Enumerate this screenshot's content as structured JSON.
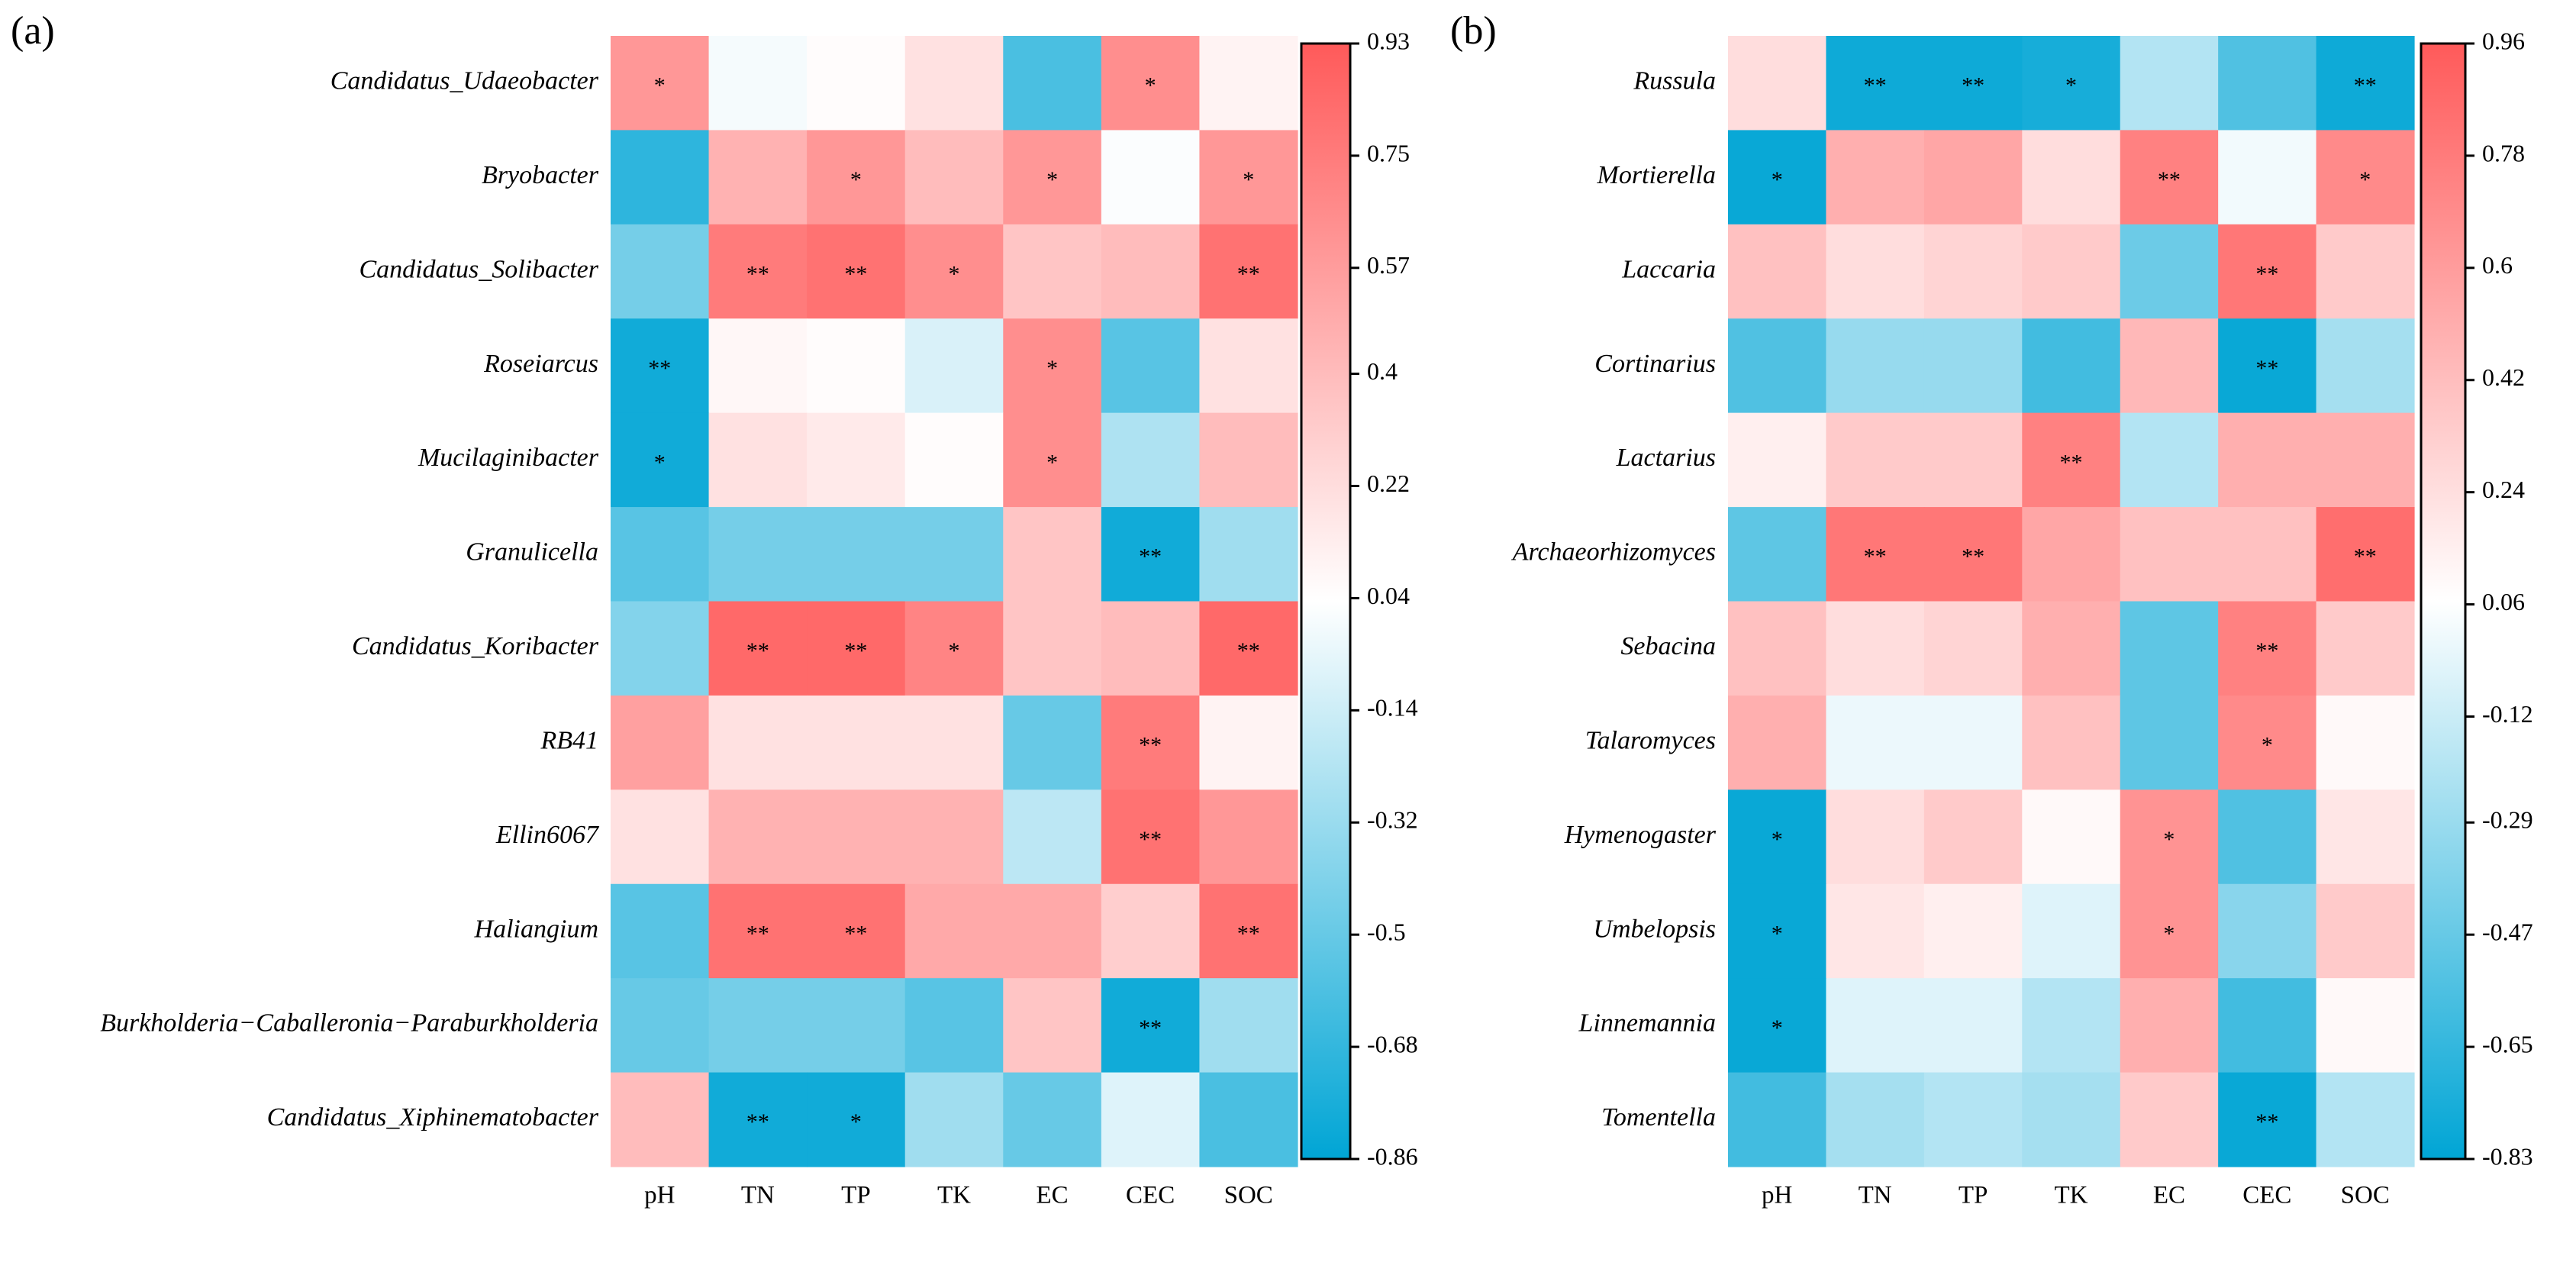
{
  "chart_data": [
    {
      "type": "heatmap",
      "panel_label": "(a)",
      "columns": [
        "pH",
        "TN",
        "TP",
        "TK",
        "EC",
        "CEC",
        "SOC"
      ],
      "rows": [
        "Candidatus_Udaeobacter",
        "Bryobacter",
        "Candidatus_Solibacter",
        "Roseiarcus",
        "Mucilaginibacter",
        "Granulicella",
        "Candidatus_Koribacter",
        "RB41",
        "Ellin6067",
        "Haliangium",
        "Burkholderia−Caballeronia−Paraburkholderia",
        "Candidatus_Xiphinematobacter"
      ],
      "values": [
        [
          0.6,
          0.0,
          0.05,
          0.2,
          -0.6,
          0.65,
          0.1
        ],
        [
          -0.7,
          0.45,
          0.6,
          0.4,
          0.6,
          0.02,
          0.6
        ],
        [
          -0.45,
          0.75,
          0.8,
          0.65,
          0.35,
          0.4,
          0.8
        ],
        [
          -0.8,
          0.08,
          0.05,
          -0.1,
          0.65,
          -0.55,
          0.2
        ],
        [
          -0.8,
          0.2,
          0.15,
          0.05,
          0.65,
          -0.25,
          0.4
        ],
        [
          -0.55,
          -0.45,
          -0.45,
          -0.45,
          0.35,
          -0.8,
          -0.3
        ],
        [
          -0.4,
          0.85,
          0.85,
          0.7,
          0.35,
          0.4,
          0.85
        ],
        [
          0.55,
          0.2,
          0.2,
          0.2,
          -0.5,
          0.75,
          0.1
        ],
        [
          0.2,
          0.45,
          0.45,
          0.45,
          -0.2,
          0.8,
          0.6
        ],
        [
          -0.55,
          0.8,
          0.8,
          0.5,
          0.5,
          0.3,
          0.8
        ],
        [
          -0.5,
          -0.45,
          -0.45,
          -0.55,
          0.35,
          -0.8,
          -0.3
        ],
        [
          0.4,
          -0.8,
          -0.8,
          -0.3,
          -0.5,
          -0.08,
          -0.6
        ]
      ],
      "annotations": [
        [
          "*",
          null,
          null,
          null,
          null,
          "*",
          null
        ],
        [
          null,
          null,
          "*",
          null,
          "*",
          null,
          "*"
        ],
        [
          null,
          "**",
          "**",
          "*",
          null,
          null,
          "**"
        ],
        [
          "**",
          null,
          null,
          null,
          "*",
          null,
          null
        ],
        [
          "*",
          null,
          null,
          null,
          "*",
          null,
          null
        ],
        [
          null,
          null,
          null,
          null,
          null,
          "**",
          null
        ],
        [
          null,
          "**",
          "**",
          "*",
          null,
          null,
          "**"
        ],
        [
          null,
          null,
          null,
          null,
          null,
          "**",
          null
        ],
        [
          null,
          null,
          null,
          null,
          null,
          "**",
          null
        ],
        [
          null,
          "**",
          "**",
          null,
          null,
          null,
          "**"
        ],
        [
          null,
          null,
          null,
          null,
          null,
          "**",
          null
        ],
        [
          null,
          "**",
          "*",
          null,
          null,
          null,
          null
        ]
      ],
      "zlim": [
        -0.86,
        0.93
      ],
      "zticks": [
        0.93,
        0.75,
        0.57,
        0.4,
        0.22,
        0.04,
        -0.14,
        -0.32,
        -0.5,
        -0.68,
        -0.86
      ],
      "colors": [
        "#00a5d5",
        "#ffffff",
        "#ff5a5a"
      ]
    },
    {
      "type": "heatmap",
      "panel_label": "(b)",
      "columns": [
        "pH",
        "TN",
        "TP",
        "TK",
        "EC",
        "CEC",
        "SOC"
      ],
      "rows": [
        "Russula",
        "Mortierella",
        "Laccaria",
        "Cortinarius",
        "Lactarius",
        "Archaeorhizomyces",
        "Sebacina",
        "Talaromyces",
        "Hymenogaster",
        "Umbelopsis",
        "Linnemannia",
        "Tomentella"
      ],
      "values": [
        [
          0.25,
          -0.78,
          -0.78,
          -0.75,
          -0.2,
          -0.55,
          -0.78
        ],
        [
          -0.8,
          0.5,
          0.55,
          0.25,
          0.75,
          0.02,
          0.7
        ],
        [
          0.4,
          0.25,
          0.3,
          0.35,
          -0.45,
          0.8,
          0.35
        ],
        [
          -0.55,
          -0.3,
          -0.3,
          -0.6,
          0.45,
          -0.8,
          -0.25
        ],
        [
          0.15,
          0.35,
          0.35,
          0.75,
          -0.2,
          0.5,
          0.5
        ],
        [
          -0.5,
          0.8,
          0.8,
          0.55,
          0.4,
          0.4,
          0.85
        ],
        [
          0.4,
          0.25,
          0.3,
          0.5,
          -0.5,
          0.75,
          0.35
        ],
        [
          0.5,
          0.0,
          0.0,
          0.4,
          -0.5,
          0.7,
          0.1
        ],
        [
          -0.8,
          0.25,
          0.35,
          0.1,
          0.65,
          -0.55,
          0.2
        ],
        [
          -0.8,
          0.2,
          0.15,
          -0.05,
          0.65,
          -0.35,
          0.35
        ],
        [
          -0.8,
          -0.05,
          -0.05,
          -0.2,
          0.5,
          -0.6,
          0.1
        ],
        [
          -0.6,
          -0.25,
          -0.2,
          -0.25,
          0.35,
          -0.8,
          -0.2
        ]
      ],
      "annotations": [
        [
          null,
          "**",
          "**",
          "*",
          null,
          null,
          "**"
        ],
        [
          "*",
          null,
          null,
          null,
          "**",
          null,
          "*"
        ],
        [
          null,
          null,
          null,
          null,
          null,
          "**",
          null
        ],
        [
          null,
          null,
          null,
          null,
          null,
          "**",
          null
        ],
        [
          null,
          null,
          null,
          "**",
          null,
          null,
          null
        ],
        [
          null,
          "**",
          "**",
          null,
          null,
          null,
          "**"
        ],
        [
          null,
          null,
          null,
          null,
          null,
          "**",
          null
        ],
        [
          null,
          null,
          null,
          null,
          null,
          "*",
          null
        ],
        [
          "*",
          null,
          null,
          null,
          "*",
          null,
          null
        ],
        [
          "*",
          null,
          null,
          null,
          "*",
          null,
          null
        ],
        [
          "*",
          null,
          null,
          null,
          null,
          null,
          null
        ],
        [
          null,
          null,
          null,
          null,
          null,
          "**",
          null
        ]
      ],
      "zlim": [
        -0.83,
        0.96
      ],
      "zticks": [
        0.96,
        0.78,
        0.6,
        0.42,
        0.24,
        0.06,
        -0.12,
        -0.29,
        -0.47,
        -0.65,
        -0.83
      ],
      "colors": [
        "#00a5d5",
        "#ffffff",
        "#ff5a5a"
      ]
    }
  ]
}
